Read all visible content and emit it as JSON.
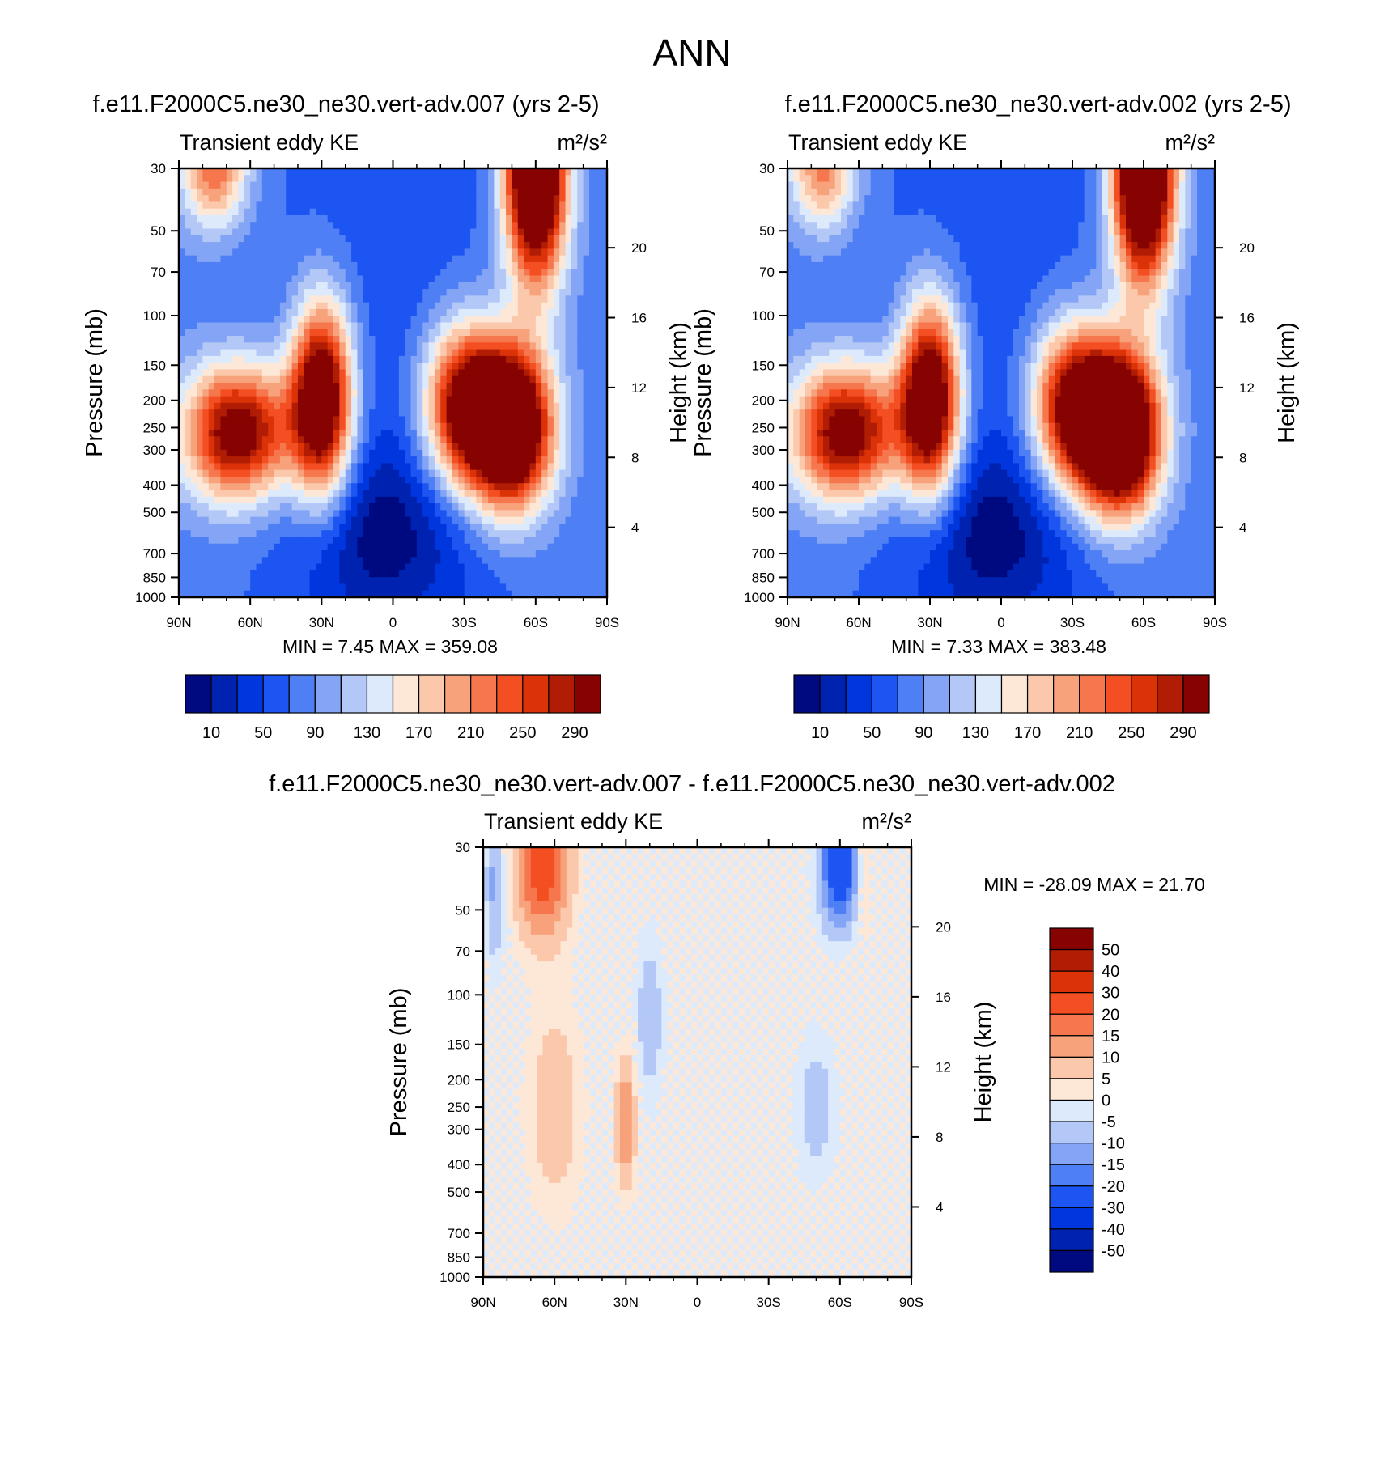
{
  "figure_title": "ANN",
  "colors": {
    "seq_palette": [
      "#000a80",
      "#0022b0",
      "#0036dd",
      "#1d55f2",
      "#4f7ff5",
      "#84a5f5",
      "#b3c8f7",
      "#ddeafc",
      "#fde8d8",
      "#fbc8ac",
      "#f7a27b",
      "#f6774d",
      "#f34f22",
      "#db3208",
      "#b11d04",
      "#870301"
    ],
    "diff_palette": [
      "#000a80",
      "#0022b0",
      "#0036dd",
      "#1d55f2",
      "#4f7ff5",
      "#84a5f5",
      "#b3c8f7",
      "#ddeafc",
      "#fde8d8",
      "#fbc8ac",
      "#f7a27b",
      "#f6774d",
      "#f34f22",
      "#db3208",
      "#b11d04",
      "#870301"
    ]
  },
  "chart_data": [
    {
      "type": "contour",
      "title": "f.e11.F2000C5.ne30_ne30.vert-adv.007 (yrs 2-5)",
      "left_label": "Transient eddy KE",
      "right_label": "m²/s²",
      "ylabel": "Pressure (mb)",
      "y2label": "Height (km)",
      "x_ticks": [
        "90N",
        "60N",
        "30N",
        "0",
        "30S",
        "60S",
        "90S"
      ],
      "y_ticks": [
        "30",
        "50",
        "70",
        "100",
        "150",
        "200",
        "250",
        "300",
        "400",
        "500",
        "700",
        "850",
        "1000"
      ],
      "y_tick_values": [
        30,
        50,
        70,
        100,
        150,
        200,
        250,
        300,
        400,
        500,
        700,
        850,
        1000
      ],
      "y2_ticks": [
        "20",
        "16",
        "12",
        "8",
        "4"
      ],
      "y2_tick_values": [
        20,
        16,
        12,
        8,
        4
      ],
      "stats": "MIN =   7.45  MAX = 359.08",
      "levels": [
        "10",
        "50",
        "90",
        "130",
        "170",
        "210",
        "250",
        "290"
      ],
      "blobs": [
        {
          "lat": 65,
          "p": 260,
          "amp": 250,
          "wlat": 16,
          "wlogp": 0.17
        },
        {
          "lat": 30,
          "p": 200,
          "amp": 300,
          "wlat": 9,
          "wlogp": 0.24
        },
        {
          "lat": -30,
          "p": 210,
          "amp": 240,
          "wlat": 12,
          "wlogp": 0.2
        },
        {
          "lat": -50,
          "p": 250,
          "amp": 340,
          "wlat": 12,
          "wlogp": 0.2
        },
        {
          "lat": -60,
          "p": 30,
          "amp": 370,
          "wlat": 9,
          "wlogp": 0.28
        },
        {
          "lat": 75,
          "p": 30,
          "amp": 150,
          "wlat": 10,
          "wlogp": 0.15
        },
        {
          "lat": 5,
          "p": 600,
          "amp": -60,
          "wlat": 25,
          "wlogp": 0.22
        }
      ]
    },
    {
      "type": "contour",
      "title": "f.e11.F2000C5.ne30_ne30.vert-adv.002 (yrs 2-5)",
      "left_label": "Transient eddy KE",
      "right_label": "m²/s²",
      "ylabel": "Pressure (mb)",
      "y2label": "Height (km)",
      "x_ticks": [
        "90N",
        "60N",
        "30N",
        "0",
        "30S",
        "60S",
        "90S"
      ],
      "y_ticks": [
        "30",
        "50",
        "70",
        "100",
        "150",
        "200",
        "250",
        "300",
        "400",
        "500",
        "700",
        "850",
        "1000"
      ],
      "y_tick_values": [
        30,
        50,
        70,
        100,
        150,
        200,
        250,
        300,
        400,
        500,
        700,
        850,
        1000
      ],
      "y2_ticks": [
        "20",
        "16",
        "12",
        "8",
        "4"
      ],
      "y2_tick_values": [
        20,
        16,
        12,
        8,
        4
      ],
      "stats": "MIN =   7.33  MAX = 383.48",
      "levels": [
        "10",
        "50",
        "90",
        "130",
        "170",
        "210",
        "250",
        "290"
      ],
      "blobs": [
        {
          "lat": 65,
          "p": 260,
          "amp": 250,
          "wlat": 16,
          "wlogp": 0.17
        },
        {
          "lat": 30,
          "p": 200,
          "amp": 300,
          "wlat": 9,
          "wlogp": 0.24
        },
        {
          "lat": -30,
          "p": 210,
          "amp": 240,
          "wlat": 12,
          "wlogp": 0.2
        },
        {
          "lat": -50,
          "p": 260,
          "amp": 370,
          "wlat": 12,
          "wlogp": 0.2
        },
        {
          "lat": -60,
          "p": 30,
          "amp": 380,
          "wlat": 9,
          "wlogp": 0.28
        },
        {
          "lat": 75,
          "p": 30,
          "amp": 140,
          "wlat": 10,
          "wlogp": 0.15
        },
        {
          "lat": 5,
          "p": 600,
          "amp": -60,
          "wlat": 25,
          "wlogp": 0.22
        }
      ]
    },
    {
      "type": "contour",
      "title": "f.e11.F2000C5.ne30_ne30.vert-adv.007 - f.e11.F2000C5.ne30_ne30.vert-adv.002",
      "left_label": "Transient eddy KE",
      "right_label": "m²/s²",
      "ylabel": "Pressure (mb)",
      "y2label": "Height (km)",
      "x_ticks": [
        "90N",
        "60N",
        "30N",
        "0",
        "30S",
        "60S",
        "90S"
      ],
      "y_ticks": [
        "30",
        "50",
        "70",
        "100",
        "150",
        "200",
        "250",
        "300",
        "400",
        "500",
        "700",
        "850",
        "1000"
      ],
      "y_tick_values": [
        30,
        50,
        70,
        100,
        150,
        200,
        250,
        300,
        400,
        500,
        700,
        850,
        1000
      ],
      "y2_ticks": [
        "20",
        "16",
        "12",
        "8",
        "4"
      ],
      "y2_tick_values": [
        20,
        16,
        12,
        8,
        4
      ],
      "stats": "MIN = -28.09  MAX =  21.70",
      "levels": [
        "50",
        "40",
        "30",
        "20",
        "15",
        "10",
        "5",
        "0",
        "-5",
        "-10",
        "-15",
        "-20",
        "-30",
        "-40",
        "-50"
      ],
      "blobs": [
        {
          "lat": 65,
          "p": 35,
          "amp": 25,
          "wlat": 8,
          "wlogp": 0.18
        },
        {
          "lat": 60,
          "p": 250,
          "amp": 9,
          "wlat": 8,
          "wlogp": 0.25
        },
        {
          "lat": 30,
          "p": 280,
          "amp": 16,
          "wlat": 3,
          "wlogp": 0.16
        },
        {
          "lat": 20,
          "p": 120,
          "amp": -9,
          "wlat": 4,
          "wlogp": 0.2
        },
        {
          "lat": -60,
          "p": 35,
          "amp": -28,
          "wlat": 6,
          "wlogp": 0.15
        },
        {
          "lat": -50,
          "p": 250,
          "amp": -8,
          "wlat": 6,
          "wlogp": 0.18
        },
        {
          "lat": 85,
          "p": 40,
          "amp": -12,
          "wlat": 3,
          "wlogp": 0.2
        },
        {
          "lat": -70,
          "p": 35,
          "amp": 8,
          "wlat": 3,
          "wlogp": 0.2
        }
      ]
    }
  ]
}
